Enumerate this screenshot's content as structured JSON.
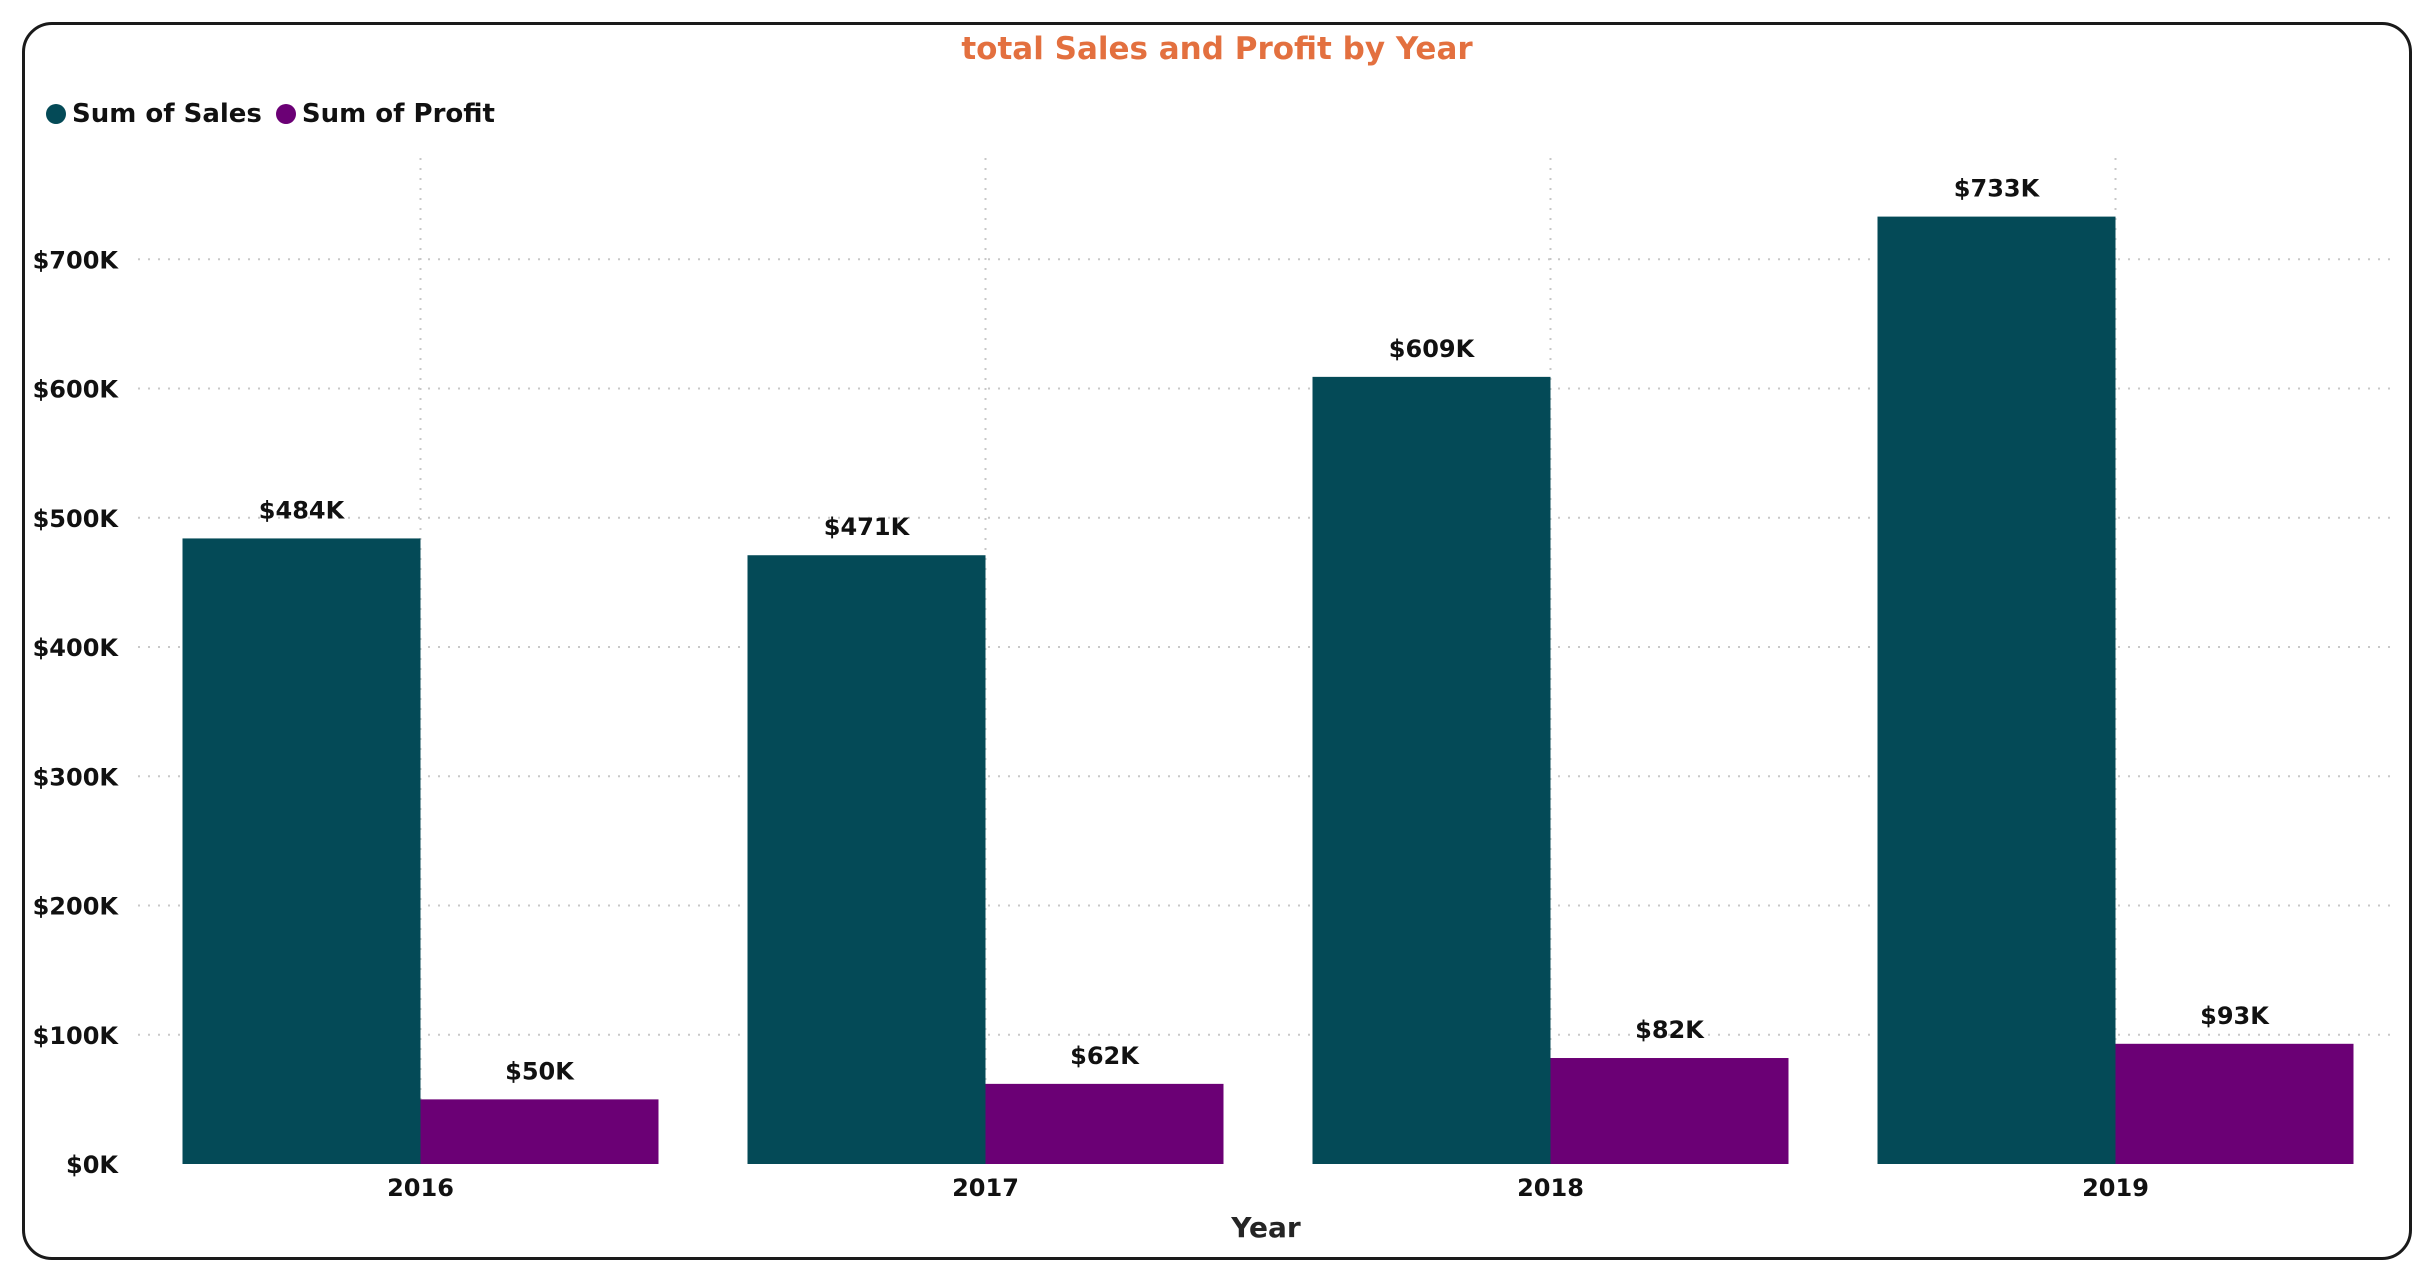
{
  "chart_data": {
    "type": "bar",
    "title": "total Sales and Profit by Year",
    "xlabel": "Year",
    "ylabel": "",
    "categories": [
      "2016",
      "2017",
      "2018",
      "2019"
    ],
    "series": [
      {
        "name": "Sum of Sales",
        "values": [
          484,
          471,
          609,
          733
        ],
        "labels": [
          "$484K",
          "$471K",
          "$609K",
          "$733K"
        ],
        "color": "#044a57"
      },
      {
        "name": "Sum of Profit",
        "values": [
          50,
          62,
          82,
          93
        ],
        "labels": [
          "$50K",
          "$62K",
          "$82K",
          "$93K"
        ],
        "color": "#6b0075"
      }
    ],
    "yunit": "thousands of dollars",
    "ylim": [
      0,
      780
    ],
    "yticks": [
      0,
      100,
      200,
      300,
      400,
      500,
      600,
      700
    ],
    "ytick_labels": [
      "$0K",
      "$100K",
      "$200K",
      "$300K",
      "$400K",
      "$500K",
      "$600K",
      "$700K"
    ],
    "grid": true,
    "legend_position": "top-left"
  },
  "colors": {
    "title": "#e3703f",
    "gridline": "#c8c8c8",
    "text": "#111111"
  }
}
